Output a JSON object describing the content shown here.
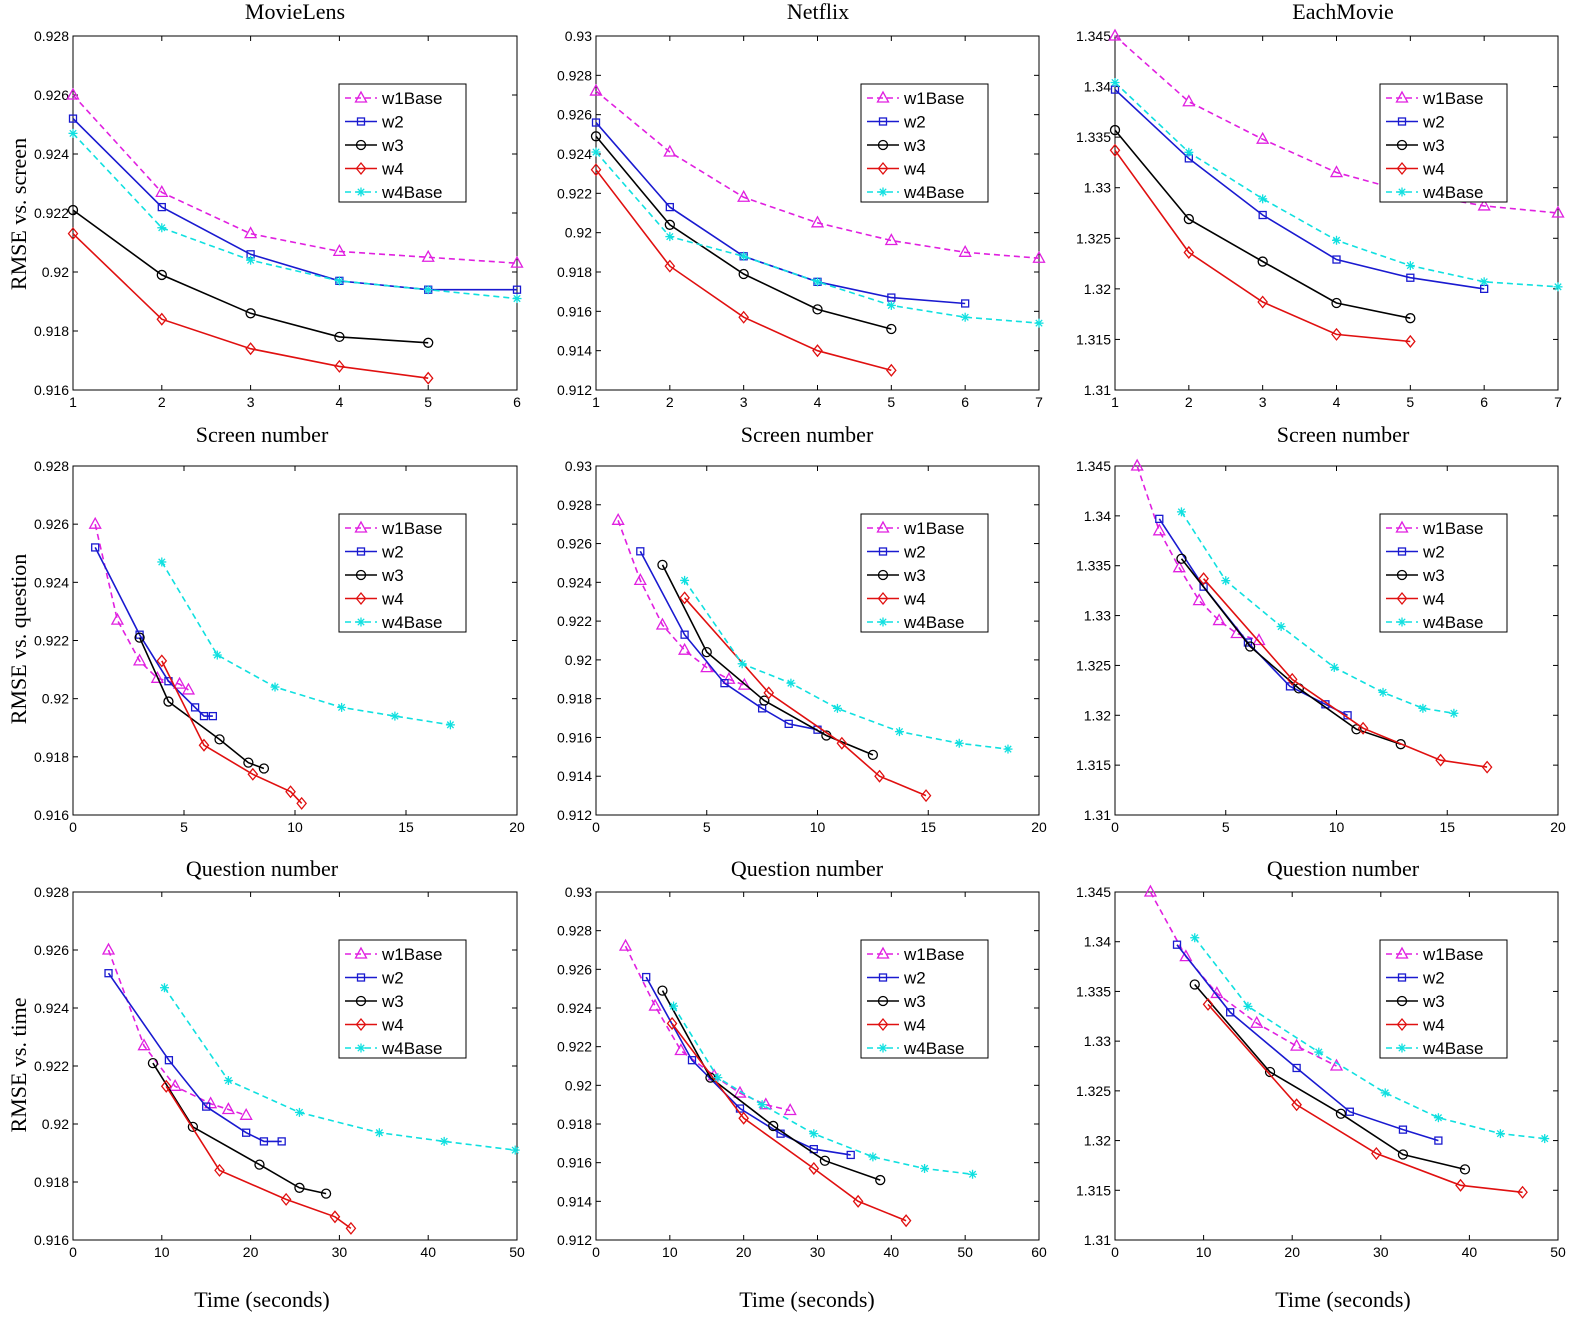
{
  "figure": {
    "column_titles": [
      "MovieLens",
      "Netflix",
      "EachMovie"
    ],
    "row_ylabels": [
      "RMSE vs. screen",
      "RMSE vs. question",
      "RMSE vs. time"
    ],
    "row_xlabels": [
      "Screen number",
      "Question number",
      "Time (seconds)"
    ]
  },
  "legend_labels": [
    "w1Base",
    "w2",
    "w3",
    "w4",
    "w4Base"
  ],
  "colors": {
    "w1Base": "#e020e0",
    "w2": "#1a1ad0",
    "w3": "#000000",
    "w4": "#e01010",
    "w4Base": "#10e0e0"
  },
  "chart_data": [
    {
      "type": "line",
      "row": 0,
      "col": 0,
      "title": "MovieLens",
      "xlabel": "",
      "ylabel": "RMSE vs. screen",
      "xlim": [
        1,
        6
      ],
      "ylim": [
        0.916,
        0.928
      ],
      "xticks": [
        1,
        2,
        3,
        4,
        5,
        6
      ],
      "yticks": [
        "0.916",
        "0.918",
        "0.92",
        "0.922",
        "0.924",
        "0.926",
        "0.928"
      ],
      "series": [
        {
          "name": "w1Base",
          "x": [
            1,
            2,
            3,
            4,
            5,
            6
          ],
          "y": [
            0.926,
            0.9227,
            0.9213,
            0.9207,
            0.9205,
            0.9203
          ]
        },
        {
          "name": "w2",
          "x": [
            1,
            2,
            3,
            4,
            5,
            6
          ],
          "y": [
            0.9252,
            0.9222,
            0.9206,
            0.9197,
            0.9194,
            0.9194
          ]
        },
        {
          "name": "w3",
          "x": [
            1,
            2,
            3,
            4,
            5
          ],
          "y": [
            0.9221,
            0.9199,
            0.9186,
            0.9178,
            0.9176
          ]
        },
        {
          "name": "w4",
          "x": [
            1,
            2,
            3,
            4,
            5
          ],
          "y": [
            0.9213,
            0.9184,
            0.9174,
            0.9168,
            0.9164
          ]
        },
        {
          "name": "w4Base",
          "x": [
            1,
            2,
            3,
            4,
            5,
            6
          ],
          "y": [
            0.9247,
            0.9215,
            0.9204,
            0.9197,
            0.9194,
            0.9191
          ]
        }
      ]
    },
    {
      "type": "line",
      "row": 0,
      "col": 1,
      "title": "Netflix",
      "xlabel": "",
      "ylabel": "",
      "xlim": [
        1,
        7
      ],
      "ylim": [
        0.912,
        0.93
      ],
      "xticks": [
        1,
        2,
        3,
        4,
        5,
        6,
        7
      ],
      "yticks": [
        "0.912",
        "0.914",
        "0.916",
        "0.918",
        "0.92",
        "0.922",
        "0.924",
        "0.926",
        "0.928",
        "0.93"
      ],
      "series": [
        {
          "name": "w1Base",
          "x": [
            1,
            2,
            3,
            4,
            5,
            6,
            7
          ],
          "y": [
            0.9272,
            0.9241,
            0.9218,
            0.9205,
            0.9196,
            0.919,
            0.9187
          ]
        },
        {
          "name": "w2",
          "x": [
            1,
            2,
            3,
            4,
            5,
            6
          ],
          "y": [
            0.9256,
            0.9213,
            0.9188,
            0.9175,
            0.9167,
            0.9164
          ]
        },
        {
          "name": "w3",
          "x": [
            1,
            2,
            3,
            4,
            5
          ],
          "y": [
            0.9249,
            0.9204,
            0.9179,
            0.9161,
            0.9151
          ]
        },
        {
          "name": "w4",
          "x": [
            1,
            2,
            3,
            4,
            5
          ],
          "y": [
            0.9232,
            0.9183,
            0.9157,
            0.914,
            0.913
          ]
        },
        {
          "name": "w4Base",
          "x": [
            1,
            2,
            3,
            4,
            5,
            6,
            7
          ],
          "y": [
            0.9241,
            0.9198,
            0.9188,
            0.9175,
            0.9163,
            0.9157,
            0.9154
          ]
        }
      ]
    },
    {
      "type": "line",
      "row": 0,
      "col": 2,
      "title": "EachMovie",
      "xlabel": "",
      "ylabel": "",
      "xlim": [
        1,
        7
      ],
      "ylim": [
        1.31,
        1.345
      ],
      "xticks": [
        1,
        2,
        3,
        4,
        5,
        6,
        7
      ],
      "yticks": [
        "1.31",
        "1.315",
        "1.32",
        "1.325",
        "1.33",
        "1.335",
        "1.34",
        "1.345"
      ],
      "series": [
        {
          "name": "w1Base",
          "x": [
            1,
            2,
            3,
            4,
            5,
            6,
            7
          ],
          "y": [
            1.345,
            1.3385,
            1.3348,
            1.3315,
            1.3295,
            1.3282,
            1.3275
          ]
        },
        {
          "name": "w2",
          "x": [
            1,
            2,
            3,
            4,
            5,
            6
          ],
          "y": [
            1.3397,
            1.3329,
            1.3273,
            1.3229,
            1.3211,
            1.32
          ]
        },
        {
          "name": "w3",
          "x": [
            1,
            2,
            3,
            4,
            5
          ],
          "y": [
            1.3357,
            1.3269,
            1.3227,
            1.3186,
            1.3171
          ]
        },
        {
          "name": "w4",
          "x": [
            1,
            2,
            3,
            4,
            5
          ],
          "y": [
            1.3337,
            1.3236,
            1.3187,
            1.3155,
            1.3148
          ]
        },
        {
          "name": "w4Base",
          "x": [
            1,
            2,
            3,
            4,
            5,
            6,
            7
          ],
          "y": [
            1.3404,
            1.3335,
            1.3289,
            1.3248,
            1.3223,
            1.3207,
            1.3202
          ]
        }
      ]
    },
    {
      "type": "line",
      "row": 1,
      "col": 0,
      "title": "",
      "xlabel": "Screen number",
      "ylabel": "RMSE vs. question",
      "xlim": [
        0,
        20
      ],
      "ylim": [
        0.916,
        0.928
      ],
      "xticks": [
        0,
        5,
        10,
        15,
        20
      ],
      "yticks": [
        "0.916",
        "0.918",
        "0.92",
        "0.922",
        "0.924",
        "0.926",
        "0.928"
      ],
      "series": [
        {
          "name": "w1Base",
          "x": [
            1,
            2,
            3,
            3.8,
            4.8,
            5.2
          ],
          "y": [
            0.926,
            0.9227,
            0.9213,
            0.9207,
            0.9205,
            0.9203
          ]
        },
        {
          "name": "w2",
          "x": [
            1,
            3,
            4.3,
            5.5,
            5.9,
            6.3
          ],
          "y": [
            0.9252,
            0.9222,
            0.9206,
            0.9197,
            0.9194,
            0.9194
          ]
        },
        {
          "name": "w3",
          "x": [
            3,
            4.3,
            6.6,
            7.9,
            8.6
          ],
          "y": [
            0.9221,
            0.9199,
            0.9186,
            0.9178,
            0.9176
          ]
        },
        {
          "name": "w4",
          "x": [
            4,
            5.9,
            8.1,
            9.8,
            10.3
          ],
          "y": [
            0.9213,
            0.9184,
            0.9174,
            0.9168,
            0.9164
          ]
        },
        {
          "name": "w4Base",
          "x": [
            4,
            6.5,
            9.1,
            12.1,
            14.5,
            17
          ],
          "y": [
            0.9247,
            0.9215,
            0.9204,
            0.9197,
            0.9194,
            0.9191
          ]
        }
      ]
    },
    {
      "type": "line",
      "row": 1,
      "col": 1,
      "title": "",
      "xlabel": "Screen number",
      "ylabel": "",
      "xlim": [
        0,
        20
      ],
      "ylim": [
        0.912,
        0.93
      ],
      "xticks": [
        0,
        5,
        10,
        15,
        20
      ],
      "yticks": [
        "0.912",
        "0.914",
        "0.916",
        "0.918",
        "0.92",
        "0.922",
        "0.924",
        "0.926",
        "0.928",
        "0.93"
      ],
      "series": [
        {
          "name": "w1Base",
          "x": [
            1,
            2,
            3,
            4,
            5,
            6,
            6.7
          ],
          "y": [
            0.9272,
            0.9241,
            0.9218,
            0.9205,
            0.9196,
            0.919,
            0.9187
          ]
        },
        {
          "name": "w2",
          "x": [
            2,
            4,
            5.8,
            7.5,
            8.7,
            10
          ],
          "y": [
            0.9256,
            0.9213,
            0.9188,
            0.9175,
            0.9167,
            0.9164
          ]
        },
        {
          "name": "w3",
          "x": [
            3,
            5,
            7.6,
            10.4,
            12.5
          ],
          "y": [
            0.9249,
            0.9204,
            0.9179,
            0.9161,
            0.9151
          ]
        },
        {
          "name": "w4",
          "x": [
            4,
            7.8,
            11.1,
            12.8,
            14.9
          ],
          "y": [
            0.9232,
            0.9183,
            0.9157,
            0.914,
            0.913
          ]
        },
        {
          "name": "w4Base",
          "x": [
            4,
            6.6,
            8.8,
            10.9,
            13.7,
            16.4,
            18.6
          ],
          "y": [
            0.9241,
            0.9198,
            0.9188,
            0.9175,
            0.9163,
            0.9157,
            0.9154
          ]
        }
      ]
    },
    {
      "type": "line",
      "row": 1,
      "col": 2,
      "title": "",
      "xlabel": "Screen number",
      "ylabel": "",
      "xlim": [
        0,
        20
      ],
      "ylim": [
        1.31,
        1.345
      ],
      "xticks": [
        0,
        5,
        10,
        15,
        20
      ],
      "yticks": [
        "1.31",
        "1.315",
        "1.32",
        "1.325",
        "1.33",
        "1.335",
        "1.34",
        "1.345"
      ],
      "series": [
        {
          "name": "w1Base",
          "x": [
            1,
            2,
            2.9,
            3.8,
            4.7,
            5.5,
            6.5
          ],
          "y": [
            1.345,
            1.3385,
            1.3348,
            1.3315,
            1.3295,
            1.3282,
            1.3275
          ]
        },
        {
          "name": "w2",
          "x": [
            2,
            4,
            6,
            7.9,
            9.5,
            10.5
          ],
          "y": [
            1.3397,
            1.3329,
            1.3273,
            1.3229,
            1.3211,
            1.32
          ]
        },
        {
          "name": "w3",
          "x": [
            3,
            6.1,
            8.3,
            10.9,
            12.9
          ],
          "y": [
            1.3357,
            1.3269,
            1.3227,
            1.3186,
            1.3171
          ]
        },
        {
          "name": "w4",
          "x": [
            4,
            8,
            11.2,
            14.7,
            16.8
          ],
          "y": [
            1.3337,
            1.3236,
            1.3187,
            1.3155,
            1.3148
          ]
        },
        {
          "name": "w4Base",
          "x": [
            3,
            5,
            7.5,
            9.9,
            12.1,
            13.9,
            15.3
          ],
          "y": [
            1.3404,
            1.3335,
            1.3289,
            1.3248,
            1.3223,
            1.3207,
            1.3202
          ]
        }
      ]
    },
    {
      "type": "line",
      "row": 2,
      "col": 0,
      "title": "",
      "xlabel": "Time (seconds)",
      "ylabel": "RMSE vs. time",
      "xlim": [
        0,
        50
      ],
      "ylim": [
        0.916,
        0.928
      ],
      "xticks": [
        0,
        10,
        20,
        30,
        40,
        50
      ],
      "yticks": [
        "0.916",
        "0.918",
        "0.92",
        "0.922",
        "0.924",
        "0.926",
        "0.928"
      ],
      "series": [
        {
          "name": "w1Base",
          "x": [
            4,
            8,
            11.5,
            15.5,
            17.5,
            19.5
          ],
          "y": [
            0.926,
            0.9227,
            0.9213,
            0.9207,
            0.9205,
            0.9203
          ]
        },
        {
          "name": "w2",
          "x": [
            4,
            10.8,
            15,
            19.5,
            21.5,
            23.5
          ],
          "y": [
            0.9252,
            0.9222,
            0.9206,
            0.9197,
            0.9194,
            0.9194
          ]
        },
        {
          "name": "w3",
          "x": [
            9,
            13.5,
            21,
            25.5,
            28.5
          ],
          "y": [
            0.9221,
            0.9199,
            0.9186,
            0.9178,
            0.9176
          ]
        },
        {
          "name": "w4",
          "x": [
            10.5,
            16.5,
            24,
            29.5,
            31.3
          ],
          "y": [
            0.9213,
            0.9184,
            0.9174,
            0.9168,
            0.9164
          ]
        },
        {
          "name": "w4Base",
          "x": [
            10.3,
            17.5,
            25.5,
            34.5,
            41.8,
            49.8
          ],
          "y": [
            0.9247,
            0.9215,
            0.9204,
            0.9197,
            0.9194,
            0.9191
          ]
        }
      ]
    },
    {
      "type": "line",
      "row": 2,
      "col": 1,
      "title": "",
      "xlabel": "Time (seconds)",
      "ylabel": "",
      "xlim": [
        0,
        60
      ],
      "ylim": [
        0.912,
        0.93
      ],
      "xticks": [
        0,
        10,
        20,
        30,
        40,
        50,
        60
      ],
      "yticks": [
        "0.912",
        "0.914",
        "0.916",
        "0.918",
        "0.92",
        "0.922",
        "0.924",
        "0.926",
        "0.928",
        "0.93"
      ],
      "series": [
        {
          "name": "w1Base",
          "x": [
            4,
            8,
            11.5,
            16,
            19.5,
            23,
            26.3
          ],
          "y": [
            0.9272,
            0.9241,
            0.9218,
            0.9205,
            0.9196,
            0.919,
            0.9187
          ]
        },
        {
          "name": "w2",
          "x": [
            6.8,
            13,
            19.5,
            25,
            29.5,
            34.5
          ],
          "y": [
            0.9256,
            0.9213,
            0.9188,
            0.9175,
            0.9167,
            0.9164
          ]
        },
        {
          "name": "w3",
          "x": [
            9,
            15.5,
            24,
            31,
            38.5
          ],
          "y": [
            0.9249,
            0.9204,
            0.9179,
            0.9161,
            0.9151
          ]
        },
        {
          "name": "w4",
          "x": [
            10.3,
            20,
            29.5,
            35.5,
            42
          ],
          "y": [
            0.9232,
            0.9183,
            0.9157,
            0.914,
            0.913
          ]
        },
        {
          "name": "w4Base",
          "x": [
            10.5,
            16.5,
            22.5,
            29.5,
            37.5,
            44.5,
            51
          ],
          "y": [
            0.9241,
            0.9204,
            0.919,
            0.9175,
            0.9163,
            0.9157,
            0.9154
          ]
        }
      ]
    },
    {
      "type": "line",
      "row": 2,
      "col": 2,
      "title": "",
      "xlabel": "Time (seconds)",
      "ylabel": "",
      "xlim": [
        0,
        50
      ],
      "ylim": [
        1.31,
        1.345
      ],
      "xticks": [
        0,
        10,
        20,
        30,
        40,
        50
      ],
      "yticks": [
        "1.31",
        "1.315",
        "1.32",
        "1.325",
        "1.33",
        "1.335",
        "1.34",
        "1.345"
      ],
      "series": [
        {
          "name": "w1Base",
          "x": [
            4,
            8,
            11.5,
            16,
            20.5,
            25
          ],
          "y": [
            1.345,
            1.3385,
            1.3348,
            1.3318,
            1.3295,
            1.3275
          ]
        },
        {
          "name": "w2",
          "x": [
            7,
            13,
            20.5,
            26.5,
            32.5,
            36.5
          ],
          "y": [
            1.3397,
            1.3329,
            1.3273,
            1.3229,
            1.3211,
            1.32
          ]
        },
        {
          "name": "w3",
          "x": [
            9,
            17.5,
            25.5,
            32.5,
            39.5
          ],
          "y": [
            1.3357,
            1.3269,
            1.3227,
            1.3186,
            1.3171
          ]
        },
        {
          "name": "w4",
          "x": [
            10.5,
            20.5,
            29.5,
            39,
            46
          ],
          "y": [
            1.3337,
            1.3236,
            1.3187,
            1.3155,
            1.3148
          ]
        },
        {
          "name": "w4Base",
          "x": [
            9,
            15,
            23,
            30.5,
            36.5,
            43.5,
            48.5
          ],
          "y": [
            1.3404,
            1.3335,
            1.3289,
            1.3248,
            1.3223,
            1.3207,
            1.3202
          ]
        }
      ]
    }
  ]
}
